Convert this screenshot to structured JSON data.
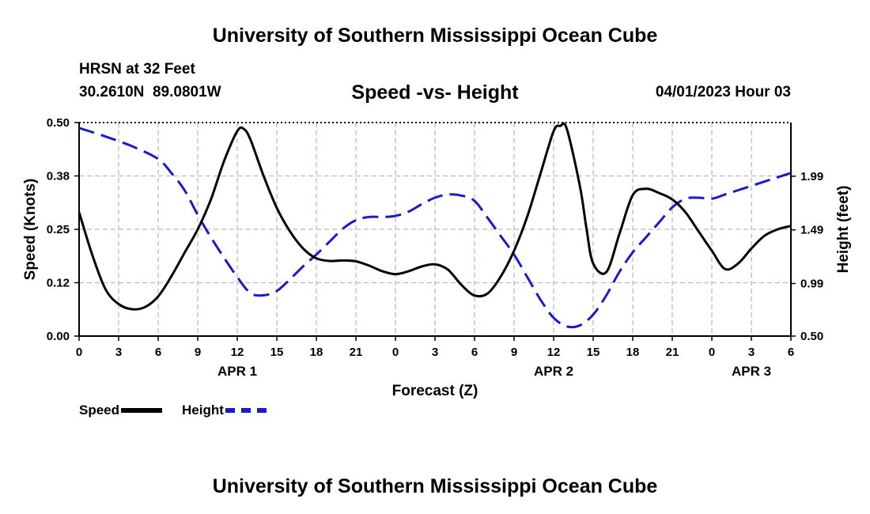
{
  "header": {
    "title": "University of Southern Mississippi Ocean Cube",
    "station": "HRSN at 32 Feet",
    "coords": "30.2610N  89.0801W",
    "datetime": "04/01/2023 Hour 03"
  },
  "footer": {
    "title": "University of Southern Mississippi Ocean Cube"
  },
  "colors": {
    "speed": "#000000",
    "height": "#1a1acc",
    "grid": "#bbbbbb"
  },
  "chart_data": {
    "type": "line",
    "title": "Speed -vs- Height",
    "xlabel": "Forecast (Z)",
    "ylabel": "Speed (Knots)",
    "y2label": "Height (feet)",
    "xlim": [
      0,
      54
    ],
    "ylim": [
      0,
      0.5
    ],
    "y2lim": [
      0.5,
      2.49
    ],
    "x_ticks": [
      0,
      3,
      6,
      9,
      12,
      15,
      18,
      21,
      24,
      27,
      30,
      33,
      36,
      39,
      42,
      45,
      48,
      51,
      54
    ],
    "x_tick_labels": [
      "0",
      "3",
      "6",
      "9",
      "12",
      "15",
      "18",
      "21",
      "0",
      "3",
      "6",
      "9",
      "12",
      "15",
      "18",
      "21",
      "0",
      "3",
      "6"
    ],
    "date_labels": [
      {
        "x": 12,
        "label": "APR 1"
      },
      {
        "x": 36,
        "label": "APR 2"
      },
      {
        "x": 51,
        "label": "APR 3"
      }
    ],
    "y_ticks": [
      0.0,
      0.125,
      0.25,
      0.375,
      0.5
    ],
    "y_tick_labels": [
      "0.00",
      "0.12",
      "0.25",
      "0.38",
      "0.50"
    ],
    "y2_ticks": [
      0.5,
      0.99,
      1.49,
      1.99
    ],
    "y2_tick_labels": [
      "0.50",
      "0.99",
      "1.49",
      "1.99"
    ],
    "grid": true,
    "series": [
      {
        "name": "Speed",
        "axis": "left",
        "style": "solid",
        "x": [
          0,
          1,
          2,
          3,
          4,
          5,
          6,
          7,
          8,
          9,
          10,
          11,
          12,
          12.5,
          13,
          14,
          15,
          16,
          17,
          18,
          19,
          20,
          21,
          22,
          23,
          24,
          25,
          26,
          27,
          28,
          29,
          30,
          31,
          32,
          33,
          34,
          35,
          36,
          36.5,
          37,
          38,
          38.5,
          39,
          40,
          41,
          42,
          43,
          44,
          45,
          46,
          47,
          48,
          49,
          50,
          51,
          52,
          53,
          54
        ],
        "values": [
          0.29,
          0.19,
          0.11,
          0.075,
          0.063,
          0.068,
          0.093,
          0.14,
          0.195,
          0.25,
          0.32,
          0.41,
          0.48,
          0.485,
          0.46,
          0.375,
          0.3,
          0.245,
          0.205,
          0.182,
          0.176,
          0.177,
          0.175,
          0.165,
          0.152,
          0.145,
          0.152,
          0.163,
          0.168,
          0.155,
          0.12,
          0.095,
          0.1,
          0.14,
          0.2,
          0.28,
          0.38,
          0.48,
          0.492,
          0.485,
          0.35,
          0.25,
          0.17,
          0.15,
          0.24,
          0.33,
          0.345,
          0.335,
          0.32,
          0.29,
          0.245,
          0.2,
          0.157,
          0.17,
          0.205,
          0.235,
          0.25,
          0.258
        ]
      },
      {
        "name": "Height",
        "axis": "right",
        "style": "dashed",
        "x": [
          0,
          2,
          4,
          6,
          7,
          8,
          9,
          10,
          11,
          12,
          13,
          14,
          15,
          16,
          17,
          18,
          19,
          20,
          21,
          22,
          23,
          24,
          25,
          26,
          27,
          28,
          29,
          30,
          31,
          32,
          33,
          34,
          35,
          36,
          37,
          38,
          39,
          40,
          41,
          42,
          43,
          44,
          45,
          46,
          47,
          48,
          49,
          50,
          51,
          52,
          53,
          54
        ],
        "values": [
          2.44,
          2.36,
          2.27,
          2.15,
          2.02,
          1.86,
          1.63,
          1.42,
          1.23,
          1.05,
          0.9,
          0.88,
          0.92,
          1.03,
          1.15,
          1.26,
          1.38,
          1.5,
          1.58,
          1.61,
          1.61,
          1.62,
          1.66,
          1.73,
          1.79,
          1.82,
          1.81,
          1.76,
          1.6,
          1.43,
          1.26,
          1.05,
          0.84,
          0.67,
          0.59,
          0.6,
          0.7,
          0.88,
          1.1,
          1.28,
          1.42,
          1.56,
          1.7,
          1.78,
          1.79,
          1.78,
          1.82,
          1.86,
          1.9,
          1.94,
          1.98,
          2.02
        ]
      }
    ]
  }
}
